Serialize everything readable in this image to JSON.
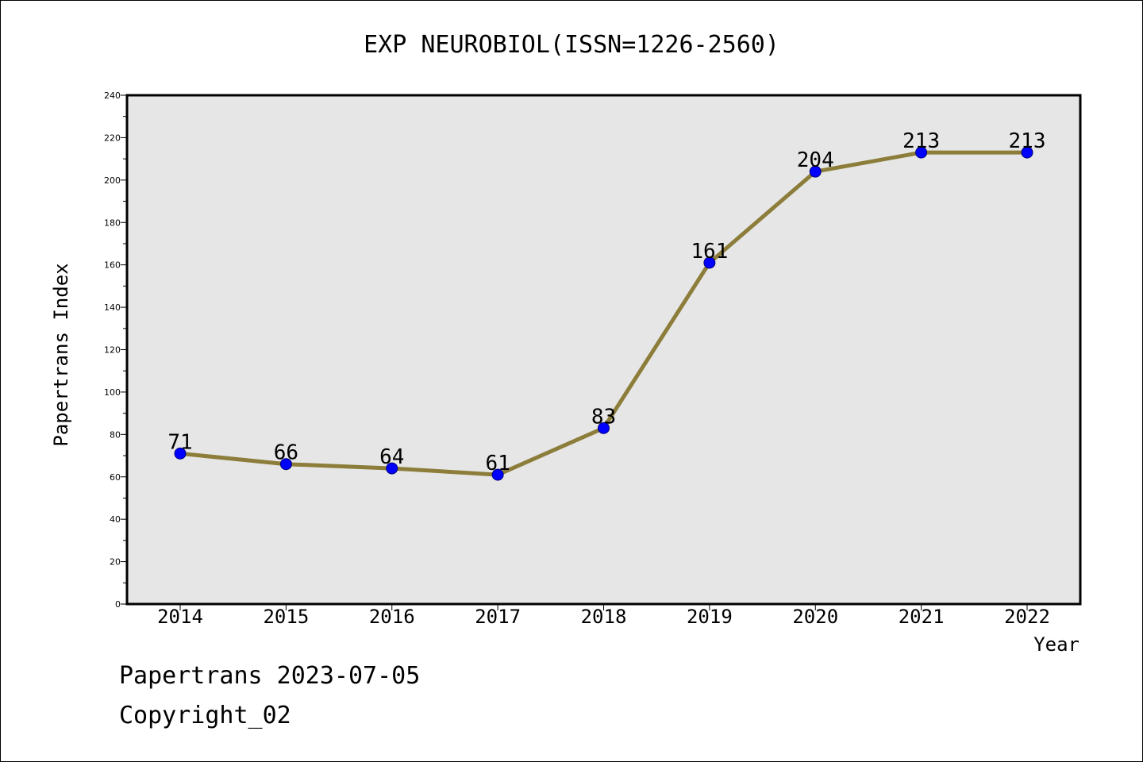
{
  "chart_data": {
    "type": "line",
    "title": "EXP NEUROBIOL(ISSN=1226-2560)",
    "xlabel": "Year",
    "ylabel": "Papertrans Index",
    "categories": [
      "2014",
      "2015",
      "2016",
      "2017",
      "2018",
      "2019",
      "2020",
      "2021",
      "2022"
    ],
    "series": [
      {
        "values": [
          71,
          66,
          64,
          61,
          83,
          161,
          204,
          213,
          213
        ]
      }
    ],
    "ylim": [
      0,
      240
    ],
    "yticks": [
      0,
      20,
      40,
      60,
      80,
      100,
      120,
      140,
      160,
      180,
      200,
      220,
      240
    ],
    "grid": false,
    "line_color": "#8c7d3a",
    "marker_color": "#0000ff",
    "plot_background": "#e6e6e6"
  },
  "footer": {
    "line1": "Papertrans 2023-07-05",
    "line2": "Copyright_02"
  }
}
